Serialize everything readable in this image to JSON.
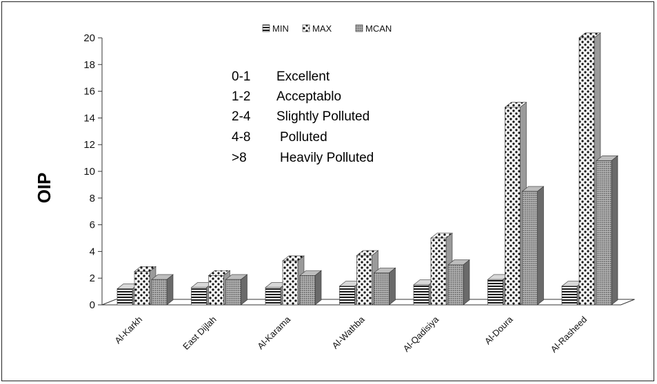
{
  "chart_data": {
    "type": "bar",
    "ylabel": "OIP",
    "xlabel": "",
    "ylim": [
      0,
      20
    ],
    "y_ticks": [
      "0",
      "2",
      "4",
      "6",
      "8",
      "10",
      "12",
      "14",
      "16",
      "18",
      "20"
    ],
    "categories": [
      "Al-Karkh",
      "East Dijlah",
      "Al-Karama",
      "Al-Wathba",
      "Al-Qadisiya",
      "Al-Doura",
      "Al-Rasheed"
    ],
    "series": [
      {
        "name": "MIN",
        "values": [
          1.2,
          1.3,
          1.3,
          1.4,
          1.5,
          1.9,
          1.4
        ]
      },
      {
        "name": "MAX",
        "values": [
          2.5,
          2.2,
          3.3,
          3.7,
          5.0,
          14.8,
          20.0
        ]
      },
      {
        "name": "MCAN",
        "values": [
          1.9,
          1.9,
          2.2,
          2.4,
          3.0,
          8.5,
          10.8
        ]
      }
    ],
    "legend_position": "top",
    "grid": false,
    "annotations": [
      {
        "range": "0-1",
        "label": "Excellent"
      },
      {
        "range": "1-2",
        "label": "Acceptablo"
      },
      {
        "range": "2-4",
        "label": "Slightly Polluted"
      },
      {
        "range": "4-8",
        "label": "Polluted"
      },
      {
        "range": ">8",
        "label": "Heavily Polluted"
      }
    ],
    "colors": {
      "face": "#f4f4f4",
      "side": "#9a9a9a",
      "top": "#d2d2d2",
      "ink": "#111111"
    }
  }
}
